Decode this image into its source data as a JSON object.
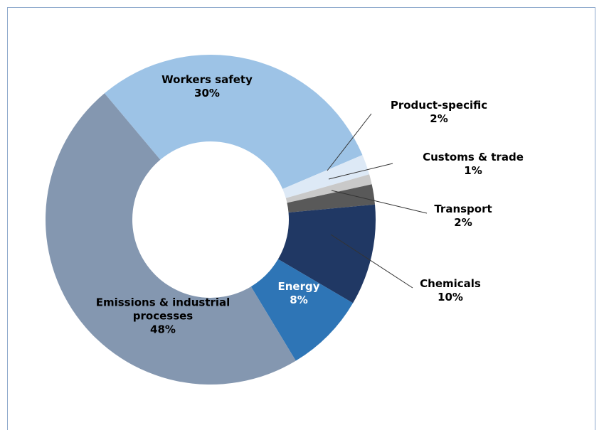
{
  "chart_data": {
    "type": "pie",
    "categories": [
      "Workers safety",
      "Product-specific",
      "Customs & trade",
      "Transport",
      "Chemicals",
      "Energy",
      "Emissions & industrial processes"
    ],
    "values": [
      30,
      2,
      1,
      2,
      10,
      8,
      48
    ],
    "value_labels": [
      "30%",
      "2%",
      "1%",
      "2%",
      "10%",
      "8%",
      "48%"
    ],
    "colors": [
      "#9dc3e6",
      "#dde9f6",
      "#c9c9c9",
      "#595959",
      "#203864",
      "#2e75b6",
      "#8497b0"
    ]
  }
}
